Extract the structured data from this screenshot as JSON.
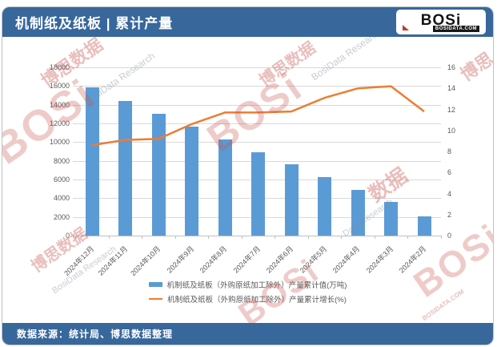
{
  "header": {
    "title": "机制纸及纸板 | 累计产量",
    "logo": {
      "text": "BOSi",
      "sub": "BOSIDATA.COM"
    }
  },
  "footer": {
    "source": "数据来源：统计局、博思数据整理"
  },
  "watermarks": [
    "BOSi",
    "博思数据",
    "BosiData Research",
    "BOSi",
    "博思数据",
    "BosiData Research",
    "数据",
    "Data Research",
    "博思数据",
    "BosiData Research",
    "BOSi",
    "BOSi",
    "BOSIDATA.COM",
    "博思"
  ],
  "chart_data": {
    "type": "combo-bar-line",
    "title": "机制纸及纸板 | 累计产量",
    "categories": [
      "2024年12月",
      "2024年11月",
      "2024年10月",
      "2024年9月",
      "2024年8月",
      "2024年7月",
      "2024年6月",
      "2024年5月",
      "2024年4月",
      "2024年3月",
      "2024年2月"
    ],
    "series": [
      {
        "name": "机制纸及纸板（外购原纸加工除外）产量累计值(万吨)",
        "type": "bar",
        "axis": "left",
        "color": "#5B9BD5",
        "values": [
          15900,
          14400,
          13000,
          11700,
          10300,
          8900,
          7600,
          6300,
          4900,
          3600,
          2100
        ]
      },
      {
        "name": "机制纸及纸板（外购原纸加工除外）产量累计增长(%)",
        "type": "line",
        "axis": "right",
        "color": "#ED7D31",
        "values": [
          8.6,
          9.1,
          9.2,
          10.6,
          11.7,
          11.7,
          11.8,
          13.1,
          14.0,
          14.2,
          11.8
        ]
      }
    ],
    "left_axis": {
      "min": 0,
      "max": 18000,
      "step": 2000
    },
    "right_axis": {
      "min": 0,
      "max": 16,
      "step": 2
    },
    "grid": true,
    "legend_position": "bottom"
  }
}
